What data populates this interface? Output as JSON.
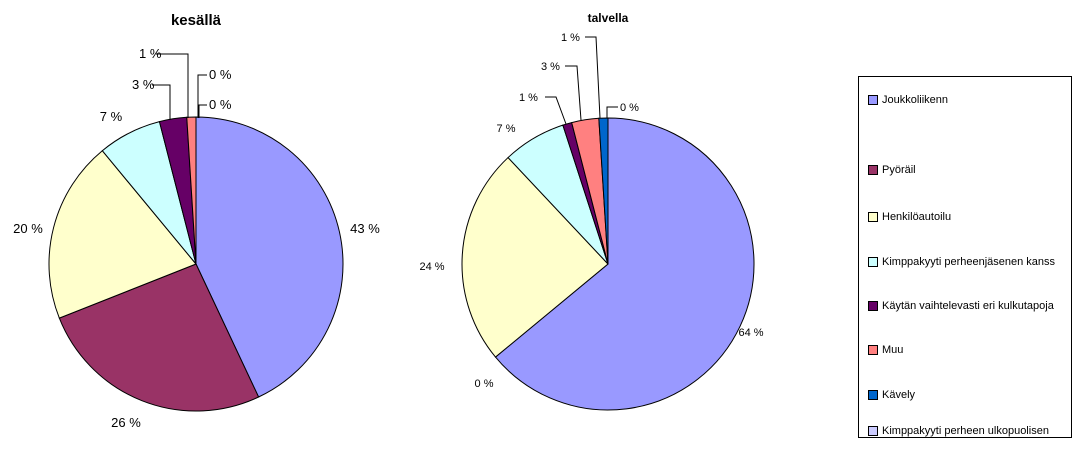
{
  "chart_data": [
    {
      "type": "pie",
      "title": "kesällä",
      "categories": [
        "Joukkoliikenn",
        "Pyöräil",
        "Henkilöautoilu",
        "Kimppakyyti perheenjäsenen kanss",
        "Käytän vaihtelevasti eri kulkutapoja",
        "Muu",
        "Kävely",
        "Kimppakyyti perheen ulkopuolisen"
      ],
      "values": [
        43,
        26,
        20,
        7,
        3,
        1,
        0,
        0
      ],
      "data_labels": [
        "43 %",
        "26 %",
        "20 %",
        "7 %",
        "3 %",
        "1 %",
        "0 %",
        "0 %"
      ],
      "legend": "right"
    },
    {
      "type": "pie",
      "title": "talvella",
      "categories": [
        "Joukkoliikenn",
        "Pyöräil",
        "Henkilöautoilu",
        "Kimppakyyti perheenjäsenen kanss",
        "Käytän vaihtelevasti eri kulkutapoja",
        "Muu",
        "Kävely",
        "Kimppakyyti perheen ulkopuolisen"
      ],
      "values": [
        64,
        0,
        24,
        7,
        1,
        3,
        1,
        0
      ],
      "data_labels": [
        "64 %",
        "0 %",
        "24 %",
        "7 %",
        "1 %",
        "3 %",
        "1 %",
        "0 %"
      ],
      "legend": "right"
    }
  ],
  "legend": {
    "items": [
      {
        "label": "Joukkoliikenn",
        "color": "#9999ff"
      },
      {
        "label": "Pyöräil",
        "color": "#993366"
      },
      {
        "label": "Henkilöautoilu",
        "color": "#ffffcc"
      },
      {
        "label": "Kimppakyyti perheenjäsenen kanss",
        "color": "#ccffff"
      },
      {
        "label": "Käytän vaihtelevasti eri kulkutapoja",
        "color": "#660066"
      },
      {
        "label": "Muu",
        "color": "#ff8080"
      },
      {
        "label": "Kävely",
        "color": "#0066cc"
      },
      {
        "label": "Kimppakyyti perheen ulkopuolisen",
        "color": "#ccccff"
      }
    ]
  }
}
